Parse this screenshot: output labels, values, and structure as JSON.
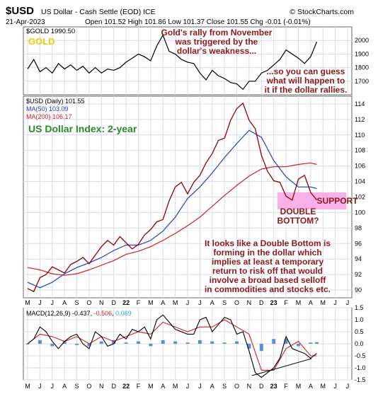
{
  "header": {
    "symbol": "$USD",
    "name": "US Dollar - Cash Settle (EOD) ICE",
    "source": "© StockCharts.com",
    "date": "21-Apr-2023",
    "quote": "Open 101.52  High 101.86  Low 101.37  Close 101.55  Chg -0.01 (-0.01%)"
  },
  "colors": {
    "price": "#8b0000",
    "ma50": "#1f3fbf",
    "ma200": "#cc2222",
    "annotation": "#8b1a1a",
    "title_green": "#2a8a2a",
    "gold_label": "#e6d200",
    "support_box": "#f8b0e8",
    "macd_hist": "#5a8fd0",
    "grid": "#d8dce6"
  },
  "chart_data": [
    {
      "type": "line",
      "panel": "gold",
      "legend": "$GOLD 1990.50",
      "label": "GOLD",
      "ylim": [
        1600,
        2100
      ],
      "yticks": [
        "2000",
        "1900",
        "1800",
        "1700"
      ],
      "series": [
        {
          "name": "$GOLD",
          "x": [
            0,
            0.5,
            1,
            1.5,
            2,
            2.5,
            3,
            3.5,
            4,
            4.5,
            5,
            5.5,
            6,
            6.5,
            7,
            7.5,
            8,
            8.5,
            9,
            9.5,
            10,
            10.5,
            11,
            11.5,
            12,
            12.5,
            13,
            13.5,
            14,
            14.5,
            15,
            15.5,
            16,
            16.5,
            17,
            17.5,
            18,
            18.5,
            19,
            19.5,
            20,
            20.5,
            21,
            21.5,
            22,
            22.5,
            23,
            23.5
          ],
          "values": [
            1790,
            1860,
            1770,
            1800,
            1760,
            1830,
            1790,
            1820,
            1780,
            1810,
            1760,
            1800,
            1760,
            1790,
            1780,
            1800,
            1840,
            1870,
            1900,
            1880,
            1850,
            1960,
            2040,
            1920,
            1900,
            1860,
            1840,
            1830,
            1760,
            1710,
            1780,
            1740,
            1720,
            1690,
            1680,
            1640,
            1700,
            1700,
            1760,
            1780,
            1820,
            1860,
            1930,
            1900,
            1870,
            1830,
            1880,
            1990
          ]
        }
      ]
    },
    {
      "type": "line",
      "panel": "usd",
      "legend": [
        "$USD (Daily) 101.55",
        "MA(50) 103.09",
        "MA(200) 106.17"
      ],
      "title": "US Dollar Index: 2-year",
      "ylim": [
        89,
        115
      ],
      "yticks": [
        "114",
        "112",
        "110",
        "108",
        "106",
        "104",
        "102",
        "100",
        "98",
        "96",
        "94",
        "92",
        "90"
      ],
      "series": [
        {
          "name": "$USD",
          "x": [
            0,
            0.5,
            1,
            1.5,
            2,
            2.5,
            3,
            3.5,
            4,
            4.5,
            5,
            5.5,
            6,
            6.5,
            7,
            7.5,
            8,
            8.5,
            9,
            9.5,
            10,
            10.5,
            11,
            11.5,
            12,
            12.5,
            13,
            13.5,
            14,
            14.5,
            15,
            15.5,
            16,
            16.5,
            17,
            17.5,
            18,
            18.5,
            19,
            19.5,
            20,
            20.5,
            21,
            21.5,
            22,
            22.5,
            23,
            23.5
          ],
          "values": [
            90.2,
            89.8,
            91.6,
            92.0,
            93.0,
            92.6,
            92.2,
            93.3,
            93.7,
            94.2,
            93.4,
            94.5,
            95.6,
            96.4,
            95.8,
            96.9,
            96.1,
            95.3,
            95.9,
            97.1,
            97.8,
            98.8,
            99.1,
            101.5,
            103.3,
            103.9,
            102.4,
            103.9,
            104.8,
            106.4,
            107.6,
            109.3,
            109.6,
            111.9,
            113.4,
            114.1,
            111.9,
            110.8,
            107.4,
            105.3,
            104.1,
            103.9,
            102.1,
            101.6,
            104.3,
            104.8,
            102.6,
            101.6
          ]
        },
        {
          "name": "MA(50)",
          "x": [
            0,
            1,
            2,
            3,
            4,
            5,
            6,
            7,
            8,
            9,
            10,
            11,
            12,
            13,
            14,
            15,
            16,
            17,
            18,
            19,
            20,
            21,
            22,
            23,
            23.5
          ],
          "values": [
            91.0,
            90.3,
            91.0,
            92.1,
            92.9,
            93.5,
            94.2,
            95.1,
            95.8,
            95.8,
            96.4,
            97.6,
            99.4,
            101.8,
            103.3,
            105.1,
            107.1,
            108.9,
            110.6,
            109.7,
            106.7,
            104.6,
            103.3,
            103.3,
            103.1
          ]
        },
        {
          "name": "MA(200)",
          "x": [
            0,
            1,
            2,
            3,
            4,
            5,
            6,
            7,
            8,
            9,
            10,
            11,
            12,
            13,
            14,
            15,
            16,
            17,
            18,
            19,
            20,
            21,
            22,
            23,
            23.5
          ],
          "values": [
            92.9,
            92.6,
            92.1,
            91.9,
            92.1,
            92.6,
            93.2,
            93.8,
            94.6,
            95.0,
            95.6,
            96.4,
            97.3,
            98.3,
            99.4,
            100.8,
            102.2,
            103.5,
            104.7,
            105.6,
            105.9,
            105.9,
            106.2,
            106.4,
            106.2
          ]
        }
      ],
      "annotations": [
        "SUPPORT",
        "DOUBLE BOTTOM?"
      ]
    },
    {
      "type": "line",
      "panel": "macd",
      "legend": [
        "MACD(12,26,9)",
        "-0.437",
        "-0.506",
        "0.069"
      ],
      "ylim": [
        -1.5,
        1.5
      ],
      "yticks": [
        "1.5",
        "1.0",
        "0.5",
        "0.0",
        "-0.5",
        "-1.0",
        "-1.5"
      ],
      "series": [
        {
          "name": "MACD",
          "x": [
            0,
            0.5,
            1,
            1.5,
            2,
            2.5,
            3,
            3.5,
            4,
            4.5,
            5,
            5.5,
            6,
            6.5,
            7,
            7.5,
            8,
            8.5,
            9,
            9.5,
            10,
            10.5,
            11,
            11.5,
            12,
            12.5,
            13,
            13.5,
            14,
            14.5,
            15,
            15.5,
            16,
            16.5,
            17,
            17.5,
            18,
            18.5,
            19,
            19.5,
            20,
            20.5,
            21,
            21.5,
            22,
            22.5,
            23,
            23.5
          ],
          "values": [
            0.0,
            0.2,
            0.7,
            0.5,
            0.1,
            -0.2,
            0.1,
            0.3,
            0.4,
            0.0,
            -0.2,
            0.5,
            0.3,
            -0.1,
            0.0,
            0.4,
            0.2,
            0.6,
            0.5,
            0.7,
            0.2,
            1.0,
            1.2,
            0.9,
            0.6,
            0.5,
            0.4,
            0.4,
            1.0,
            1.1,
            0.5,
            0.8,
            1.1,
            1.0,
            0.4,
            0.5,
            -0.3,
            -1.2,
            -1.4,
            -1.2,
            -1.0,
            -0.6,
            0.3,
            -0.2,
            -0.3,
            -0.4,
            -0.6,
            -0.4
          ]
        },
        {
          "name": "Signal",
          "x": [
            0,
            1,
            2,
            3,
            4,
            5,
            6,
            7,
            8,
            9,
            10,
            11,
            12,
            13,
            14,
            15,
            16,
            17,
            18,
            19,
            20,
            21,
            22,
            23,
            23.5
          ],
          "values": [
            0.0,
            0.4,
            0.3,
            0.1,
            0.3,
            0.0,
            0.3,
            0.1,
            0.3,
            0.5,
            0.4,
            0.9,
            0.7,
            0.5,
            0.7,
            0.7,
            1.0,
            0.7,
            0.4,
            -1.1,
            -1.1,
            -0.2,
            0.1,
            -0.5,
            -0.5
          ]
        },
        {
          "name": "Histogram",
          "x": [
            0,
            1,
            2,
            3,
            4,
            5,
            6,
            7,
            8,
            9,
            10,
            11,
            12,
            13,
            14,
            15,
            16,
            17,
            18,
            19,
            20,
            21,
            22,
            23,
            23.5
          ],
          "values": [
            0.0,
            0.15,
            -0.1,
            0.1,
            -0.05,
            -0.1,
            0.1,
            0.15,
            0.05,
            0.1,
            -0.1,
            0.15,
            0.1,
            0.05,
            0.15,
            0.1,
            0.05,
            0.1,
            -0.2,
            -0.3,
            0.2,
            0.2,
            -0.1,
            0.05,
            0.07
          ]
        }
      ]
    }
  ],
  "x_axis": {
    "labels": [
      "M",
      "J",
      "J",
      "A",
      "S",
      "O",
      "N",
      "D",
      "22",
      "F",
      "M",
      "A",
      "M",
      "J",
      "J",
      "A",
      "S",
      "O",
      "N",
      "D",
      "23",
      "F",
      "M",
      "A",
      "M",
      "J",
      "J"
    ]
  },
  "annotations": {
    "gold_top": [
      "Gold's rally from November",
      "was triggered by the",
      "dollar's weakness..."
    ],
    "gold_right": [
      "...so you can guess",
      "what will happen to",
      "it if the dollar rallies."
    ],
    "support": "SUPPORT",
    "double_bottom": [
      "DOUBLE",
      "BOTTOM?"
    ],
    "commentary": [
      "It looks like a Double Bottom is",
      "forming in the dollar which",
      "implies at least a temporary",
      "return to risk off that would",
      "involve a broad based selloff",
      "in commodities and stocks etc."
    ]
  }
}
